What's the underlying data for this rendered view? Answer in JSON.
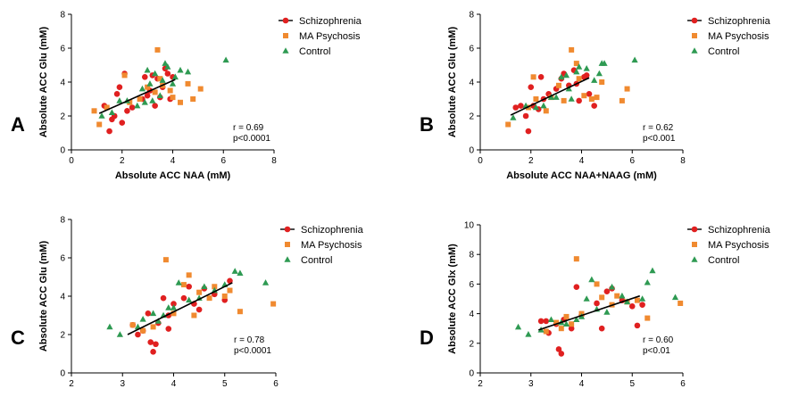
{
  "colors": {
    "schizophrenia": "#e02020",
    "ma_psychosis": "#f08a30",
    "control": "#2e9a52",
    "fit_line": "#000000"
  },
  "chart_data": [
    {
      "type": "scatter",
      "panel_label": "A",
      "xlabel": "Absolute ACC NAA (mM)",
      "ylabel": "Absolute ACC Glu (mM)",
      "xlim": [
        0,
        8
      ],
      "ylim": [
        0,
        8
      ],
      "xticks": [
        "0",
        "2",
        "4",
        "6",
        "8"
      ],
      "yticks": [
        "0",
        "2",
        "4",
        "6",
        "8"
      ],
      "stats": [
        "r = 0.69",
        "p<0.0001"
      ],
      "legend": [
        "Schizophrenia",
        "MA Psychosis",
        "Control"
      ],
      "legend_position": "top-right",
      "fit_line": {
        "x": [
          1.1,
          4.1
        ],
        "y": [
          2.15,
          4.15
        ]
      },
      "series": [
        {
          "name": "Schizophrenia",
          "marker": "circle",
          "color_key": "schizophrenia",
          "points": [
            [
              1.5,
              1.1
            ],
            [
              1.6,
              1.8
            ],
            [
              1.7,
              2.0
            ],
            [
              1.8,
              3.3
            ],
            [
              2.0,
              1.6
            ],
            [
              2.1,
              4.5
            ],
            [
              2.2,
              2.3
            ],
            [
              2.4,
              2.5
            ],
            [
              2.8,
              3.0
            ],
            [
              3.0,
              3.2
            ],
            [
              3.1,
              3.5
            ],
            [
              3.2,
              4.4
            ],
            [
              3.4,
              4.2
            ],
            [
              3.6,
              3.7
            ],
            [
              3.7,
              4.8
            ],
            [
              3.8,
              4.5
            ],
            [
              3.9,
              3.0
            ],
            [
              4.0,
              4.3
            ],
            [
              1.3,
              2.6
            ],
            [
              3.3,
              2.6
            ],
            [
              2.9,
              4.3
            ],
            [
              1.9,
              3.7
            ],
            [
              3.5,
              3.1
            ]
          ]
        },
        {
          "name": "MA Psychosis",
          "marker": "square",
          "color_key": "ma_psychosis",
          "points": [
            [
              0.9,
              2.3
            ],
            [
              1.1,
              1.5
            ],
            [
              1.4,
              2.5
            ],
            [
              2.1,
              4.4
            ],
            [
              2.3,
              2.8
            ],
            [
              2.7,
              3.0
            ],
            [
              3.0,
              3.7
            ],
            [
              3.3,
              3.4
            ],
            [
              3.4,
              5.9
            ],
            [
              3.5,
              4.2
            ],
            [
              3.6,
              3.8
            ],
            [
              3.9,
              3.5
            ],
            [
              4.0,
              3.1
            ],
            [
              4.3,
              2.8
            ],
            [
              4.6,
              3.9
            ],
            [
              4.8,
              3.0
            ],
            [
              5.1,
              3.6
            ]
          ]
        },
        {
          "name": "Control",
          "marker": "triangle",
          "color_key": "control",
          "points": [
            [
              1.2,
              2.0
            ],
            [
              1.6,
              2.2
            ],
            [
              1.9,
              2.9
            ],
            [
              2.2,
              2.9
            ],
            [
              2.6,
              2.6
            ],
            [
              2.9,
              2.8
            ],
            [
              3.0,
              4.7
            ],
            [
              3.1,
              3.9
            ],
            [
              3.2,
              2.9
            ],
            [
              3.3,
              4.5
            ],
            [
              3.5,
              3.2
            ],
            [
              3.7,
              5.1
            ],
            [
              3.8,
              4.9
            ],
            [
              4.0,
              3.9
            ],
            [
              4.1,
              4.3
            ],
            [
              4.3,
              4.7
            ],
            [
              4.6,
              4.6
            ],
            [
              6.1,
              5.3
            ],
            [
              3.6,
              4.1
            ],
            [
              2.8,
              3.6
            ]
          ]
        }
      ]
    },
    {
      "type": "scatter",
      "panel_label": "B",
      "xlabel": "Absolute ACC NAA+NAAG (mM)",
      "ylabel": "Absolute ACC Glu (mM)",
      "xlim": [
        0,
        8
      ],
      "ylim": [
        0,
        8
      ],
      "xticks": [
        "0",
        "2",
        "4",
        "6",
        "8"
      ],
      "yticks": [
        "0",
        "2",
        "4",
        "6",
        "8"
      ],
      "stats": [
        "r = 0.62",
        "p<0.001"
      ],
      "legend": [
        "Schizophrenia",
        "MA Psychosis",
        "Control"
      ],
      "legend_position": "top-right",
      "fit_line": {
        "x": [
          1.2,
          4.3
        ],
        "y": [
          2.05,
          4.25
        ]
      },
      "series": [
        {
          "name": "Schizophrenia",
          "marker": "circle",
          "color_key": "schizophrenia",
          "points": [
            [
              1.4,
              2.5
            ],
            [
              1.8,
              2.0
            ],
            [
              1.9,
              1.1
            ],
            [
              2.1,
              2.6
            ],
            [
              2.3,
              2.4
            ],
            [
              2.5,
              3.0
            ],
            [
              2.7,
              3.3
            ],
            [
              3.0,
              3.6
            ],
            [
              3.2,
              4.2
            ],
            [
              3.3,
              4.5
            ],
            [
              3.5,
              3.8
            ],
            [
              3.7,
              4.7
            ],
            [
              3.8,
              3.9
            ],
            [
              4.1,
              4.3
            ],
            [
              4.2,
              4.4
            ],
            [
              4.3,
              3.3
            ],
            [
              4.5,
              2.6
            ],
            [
              2.0,
              3.7
            ],
            [
              3.9,
              2.9
            ],
            [
              2.4,
              4.3
            ],
            [
              1.6,
              2.6
            ]
          ]
        },
        {
          "name": "MA Psychosis",
          "marker": "square",
          "color_key": "ma_psychosis",
          "points": [
            [
              1.1,
              1.5
            ],
            [
              1.9,
              2.5
            ],
            [
              2.2,
              3.0
            ],
            [
              2.6,
              2.3
            ],
            [
              2.8,
              3.1
            ],
            [
              3.1,
              3.8
            ],
            [
              3.3,
              2.9
            ],
            [
              3.6,
              5.9
            ],
            [
              3.8,
              5.1
            ],
            [
              3.9,
              4.2
            ],
            [
              4.1,
              3.2
            ],
            [
              4.4,
              3.0
            ],
            [
              4.6,
              3.1
            ],
            [
              4.8,
              4.0
            ],
            [
              5.6,
              2.9
            ],
            [
              5.8,
              3.6
            ],
            [
              2.1,
              4.3
            ]
          ]
        },
        {
          "name": "Control",
          "marker": "triangle",
          "color_key": "control",
          "points": [
            [
              1.3,
              1.9
            ],
            [
              1.8,
              2.6
            ],
            [
              2.2,
              2.5
            ],
            [
              2.5,
              2.6
            ],
            [
              2.8,
              3.1
            ],
            [
              3.0,
              3.1
            ],
            [
              3.2,
              4.3
            ],
            [
              3.4,
              4.4
            ],
            [
              3.6,
              3.0
            ],
            [
              3.8,
              4.6
            ],
            [
              3.9,
              4.9
            ],
            [
              4.2,
              4.8
            ],
            [
              4.5,
              4.1
            ],
            [
              4.7,
              4.5
            ],
            [
              4.8,
              5.1
            ],
            [
              4.9,
              5.1
            ],
            [
              6.1,
              5.3
            ],
            [
              3.5,
              3.6
            ]
          ]
        }
      ]
    },
    {
      "type": "scatter",
      "panel_label": "C",
      "xlabel": "Absolute ACC mI (mM)",
      "ylabel": "Absolute ACC Glu (mM)",
      "xlim": [
        2,
        6
      ],
      "ylim": [
        0,
        8
      ],
      "xticks": [
        "2",
        "3",
        "4",
        "5",
        "6"
      ],
      "yticks": [
        "0",
        "2",
        "4",
        "6",
        "8"
      ],
      "stats": [
        "r = 0.78",
        "p<0.0001"
      ],
      "legend": [
        "Schizophrenia",
        "MA Psychosis",
        "Control"
      ],
      "legend_position": "top-right",
      "fit_line": {
        "x": [
          3.1,
          5.15
        ],
        "y": [
          2.0,
          4.7
        ]
      },
      "series": [
        {
          "name": "Schizophrenia",
          "marker": "circle",
          "color_key": "schizophrenia",
          "points": [
            [
              3.2,
              2.5
            ],
            [
              3.3,
              2.0
            ],
            [
              3.4,
              2.2
            ],
            [
              3.5,
              3.1
            ],
            [
              3.55,
              1.6
            ],
            [
              3.6,
              1.1
            ],
            [
              3.65,
              1.5
            ],
            [
              3.7,
              2.6
            ],
            [
              3.8,
              3.9
            ],
            [
              3.9,
              3.0
            ],
            [
              4.0,
              3.6
            ],
            [
              4.2,
              3.9
            ],
            [
              4.4,
              3.6
            ],
            [
              4.5,
              3.3
            ],
            [
              4.6,
              4.4
            ],
            [
              4.8,
              4.1
            ],
            [
              5.0,
              3.8
            ],
            [
              5.1,
              4.8
            ],
            [
              4.3,
              4.5
            ],
            [
              3.9,
              2.3
            ]
          ]
        },
        {
          "name": "MA Psychosis",
          "marker": "square",
          "color_key": "ma_psychosis",
          "points": [
            [
              3.2,
              2.5
            ],
            [
              3.4,
              2.2
            ],
            [
              3.6,
              2.4
            ],
            [
              3.85,
              5.9
            ],
            [
              4.0,
              3.1
            ],
            [
              4.2,
              4.6
            ],
            [
              4.3,
              5.1
            ],
            [
              4.5,
              4.2
            ],
            [
              4.7,
              3.9
            ],
            [
              4.8,
              4.5
            ],
            [
              5.0,
              4.0
            ],
            [
              5.1,
              4.3
            ],
            [
              5.3,
              3.2
            ],
            [
              5.95,
              3.6
            ],
            [
              4.4,
              3.0
            ]
          ]
        },
        {
          "name": "Control",
          "marker": "triangle",
          "color_key": "control",
          "points": [
            [
              2.75,
              2.4
            ],
            [
              2.95,
              2.0
            ],
            [
              3.3,
              2.4
            ],
            [
              3.4,
              2.8
            ],
            [
              3.6,
              3.1
            ],
            [
              3.7,
              2.7
            ],
            [
              3.8,
              3.0
            ],
            [
              3.9,
              3.4
            ],
            [
              4.1,
              4.7
            ],
            [
              4.3,
              3.8
            ],
            [
              4.5,
              3.9
            ],
            [
              4.6,
              4.5
            ],
            [
              4.8,
              4.3
            ],
            [
              5.0,
              4.6
            ],
            [
              5.2,
              5.3
            ],
            [
              5.3,
              5.2
            ],
            [
              5.8,
              4.7
            ],
            [
              4.0,
              3.4
            ]
          ]
        }
      ]
    },
    {
      "type": "scatter",
      "panel_label": "D",
      "xlabel": "Absolute ACC mI (mM)",
      "ylabel": "Absolute ACC Glx (mM)",
      "xlim": [
        2,
        6
      ],
      "ylim": [
        0,
        10
      ],
      "xticks": [
        "2",
        "3",
        "4",
        "5",
        "6"
      ],
      "yticks": [
        "0",
        "2",
        "4",
        "6",
        "8",
        "10"
      ],
      "stats": [
        "r = 0.60",
        "p<0.01"
      ],
      "legend": [
        "Schizophrenia",
        "MA Psychosis",
        "Control"
      ],
      "legend_position": "top-right",
      "fit_line": {
        "x": [
          3.15,
          5.15
        ],
        "y": [
          2.9,
          5.2
        ]
      },
      "series": [
        {
          "name": "Schizophrenia",
          "marker": "circle",
          "color_key": "schizophrenia",
          "points": [
            [
              3.2,
              3.5
            ],
            [
              3.35,
              2.7
            ],
            [
              3.5,
              3.3
            ],
            [
              3.55,
              1.6
            ],
            [
              3.6,
              1.3
            ],
            [
              3.65,
              3.6
            ],
            [
              3.8,
              3.0
            ],
            [
              3.9,
              5.8
            ],
            [
              4.0,
              3.9
            ],
            [
              4.3,
              4.7
            ],
            [
              4.5,
              5.5
            ],
            [
              4.6,
              5.7
            ],
            [
              4.8,
              4.9
            ],
            [
              5.0,
              4.5
            ],
            [
              5.1,
              3.2
            ],
            [
              5.2,
              4.6
            ],
            [
              3.3,
              3.5
            ],
            [
              4.4,
              3.0
            ]
          ]
        },
        {
          "name": "MA Psychosis",
          "marker": "square",
          "color_key": "ma_psychosis",
          "points": [
            [
              3.3,
              2.8
            ],
            [
              3.5,
              3.4
            ],
            [
              3.6,
              3.0
            ],
            [
              3.7,
              3.8
            ],
            [
              3.9,
              7.7
            ],
            [
              4.0,
              4.0
            ],
            [
              4.3,
              6.0
            ],
            [
              4.4,
              5.1
            ],
            [
              4.6,
              4.6
            ],
            [
              4.7,
              5.2
            ],
            [
              4.9,
              4.8
            ],
            [
              5.1,
              4.9
            ],
            [
              5.3,
              3.7
            ],
            [
              5.95,
              4.7
            ],
            [
              3.8,
              3.3
            ]
          ]
        },
        {
          "name": "Control",
          "marker": "triangle",
          "color_key": "control",
          "points": [
            [
              2.75,
              3.1
            ],
            [
              2.95,
              2.6
            ],
            [
              3.2,
              2.9
            ],
            [
              3.4,
              3.6
            ],
            [
              3.6,
              3.4
            ],
            [
              3.7,
              3.3
            ],
            [
              3.9,
              3.6
            ],
            [
              4.1,
              5.0
            ],
            [
              4.2,
              6.3
            ],
            [
              4.3,
              4.3
            ],
            [
              4.5,
              4.1
            ],
            [
              4.6,
              5.8
            ],
            [
              4.8,
              5.2
            ],
            [
              4.9,
              4.8
            ],
            [
              5.2,
              5.0
            ],
            [
              5.3,
              6.1
            ],
            [
              5.4,
              6.9
            ],
            [
              5.85,
              5.1
            ],
            [
              4.0,
              3.8
            ]
          ]
        }
      ]
    }
  ]
}
